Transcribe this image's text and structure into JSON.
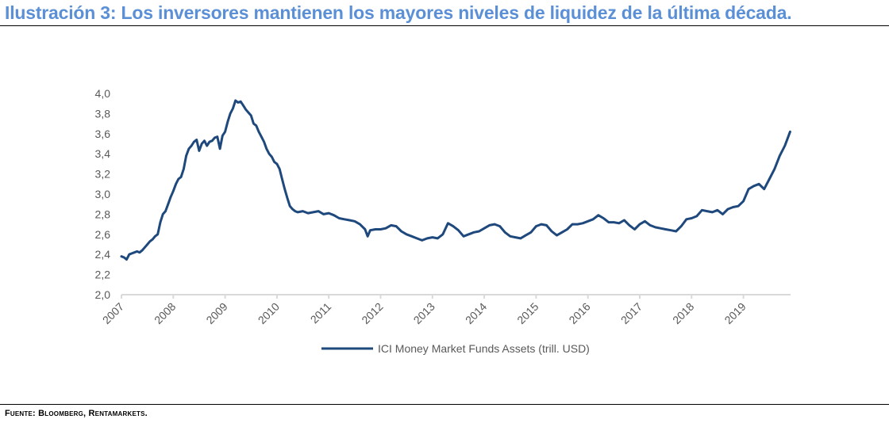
{
  "header": {
    "title": "Ilustración 3: Los inversores mantienen los mayores niveles de liquidez de la última década."
  },
  "footer": {
    "source": "Fuente: Bloomberg, Rentamarkets."
  },
  "colors": {
    "title": "#5b8fd6",
    "series": "#1f497d",
    "axis": "#d9d9d9",
    "tick_label": "#595959"
  },
  "chart_data": {
    "type": "line",
    "title": "",
    "xlabel": "",
    "ylabel": "",
    "xlim": [
      2007.0,
      2019.95
    ],
    "ylim": [
      2.0,
      4.0
    ],
    "yticks": [
      "2,0",
      "2,2",
      "2,4",
      "2,6",
      "2,8",
      "3,0",
      "3,2",
      "3,4",
      "3,6",
      "3,8",
      "4,0"
    ],
    "ytick_values": [
      2.0,
      2.2,
      2.4,
      2.6,
      2.8,
      3.0,
      3.2,
      3.4,
      3.6,
      3.8,
      4.0
    ],
    "xticks": [
      "2007",
      "2008",
      "2009",
      "2010",
      "2011",
      "2012",
      "2013",
      "2014",
      "2015",
      "2016",
      "2017",
      "2018",
      "2019"
    ],
    "xtick_values": [
      2007,
      2008,
      2009,
      2010,
      2011,
      2012,
      2013,
      2014,
      2015,
      2016,
      2017,
      2018,
      2019
    ],
    "grid": false,
    "legend": {
      "position": "bottom-center",
      "entries": [
        "ICI Money Market Funds Assets (trill. USD)"
      ]
    },
    "series": [
      {
        "name": "ICI Money Market Funds Assets (trill. USD)",
        "x": [
          2007.0,
          2007.05,
          2007.1,
          2007.15,
          2007.2,
          2007.25,
          2007.3,
          2007.35,
          2007.4,
          2007.45,
          2007.5,
          2007.55,
          2007.6,
          2007.65,
          2007.7,
          2007.75,
          2007.8,
          2007.85,
          2007.9,
          2007.95,
          2008.0,
          2008.05,
          2008.1,
          2008.15,
          2008.2,
          2008.25,
          2008.3,
          2008.35,
          2008.4,
          2008.45,
          2008.5,
          2008.55,
          2008.6,
          2008.65,
          2008.7,
          2008.75,
          2008.8,
          2008.85,
          2008.9,
          2008.95,
          2009.0,
          2009.05,
          2009.1,
          2009.15,
          2009.2,
          2009.25,
          2009.3,
          2009.35,
          2009.4,
          2009.45,
          2009.5,
          2009.55,
          2009.6,
          2009.65,
          2009.7,
          2009.75,
          2009.8,
          2009.85,
          2009.9,
          2009.95,
          2010.0,
          2010.05,
          2010.1,
          2010.15,
          2010.2,
          2010.25,
          2010.3,
          2010.35,
          2010.4,
          2010.5,
          2010.6,
          2010.7,
          2010.8,
          2010.9,
          2011.0,
          2011.1,
          2011.2,
          2011.3,
          2011.4,
          2011.5,
          2011.6,
          2011.7,
          2011.75,
          2011.8,
          2011.9,
          2012.0,
          2012.1,
          2012.2,
          2012.3,
          2012.4,
          2012.5,
          2012.6,
          2012.7,
          2012.8,
          2012.9,
          2013.0,
          2013.1,
          2013.2,
          2013.3,
          2013.4,
          2013.5,
          2013.6,
          2013.7,
          2013.8,
          2013.9,
          2014.0,
          2014.1,
          2014.2,
          2014.3,
          2014.4,
          2014.5,
          2014.6,
          2014.7,
          2014.8,
          2014.9,
          2015.0,
          2015.1,
          2015.2,
          2015.3,
          2015.4,
          2015.5,
          2015.6,
          2015.7,
          2015.8,
          2015.9,
          2016.0,
          2016.1,
          2016.2,
          2016.3,
          2016.4,
          2016.5,
          2016.6,
          2016.7,
          2016.8,
          2016.9,
          2017.0,
          2017.1,
          2017.2,
          2017.3,
          2017.4,
          2017.5,
          2017.6,
          2017.7,
          2017.8,
          2017.9,
          2018.0,
          2018.1,
          2018.2,
          2018.3,
          2018.4,
          2018.5,
          2018.6,
          2018.7,
          2018.8,
          2018.9,
          2019.0,
          2019.1,
          2019.2,
          2019.3,
          2019.4,
          2019.5,
          2019.6,
          2019.7,
          2019.8,
          2019.85,
          2019.9
        ],
        "y": [
          2.38,
          2.37,
          2.35,
          2.4,
          2.41,
          2.42,
          2.43,
          2.42,
          2.44,
          2.47,
          2.5,
          2.53,
          2.55,
          2.58,
          2.6,
          2.72,
          2.8,
          2.83,
          2.9,
          2.97,
          3.03,
          3.1,
          3.15,
          3.17,
          3.25,
          3.38,
          3.45,
          3.48,
          3.52,
          3.54,
          3.43,
          3.5,
          3.53,
          3.48,
          3.52,
          3.53,
          3.56,
          3.57,
          3.45,
          3.58,
          3.62,
          3.72,
          3.8,
          3.85,
          3.93,
          3.91,
          3.92,
          3.88,
          3.84,
          3.81,
          3.78,
          3.7,
          3.68,
          3.62,
          3.57,
          3.52,
          3.45,
          3.4,
          3.37,
          3.32,
          3.3,
          3.25,
          3.15,
          3.05,
          2.96,
          2.88,
          2.85,
          2.83,
          2.82,
          2.83,
          2.81,
          2.82,
          2.83,
          2.8,
          2.81,
          2.79,
          2.76,
          2.75,
          2.74,
          2.73,
          2.7,
          2.65,
          2.58,
          2.64,
          2.65,
          2.65,
          2.66,
          2.69,
          2.68,
          2.63,
          2.6,
          2.58,
          2.56,
          2.54,
          2.56,
          2.57,
          2.56,
          2.6,
          2.71,
          2.68,
          2.64,
          2.58,
          2.6,
          2.62,
          2.63,
          2.66,
          2.69,
          2.7,
          2.68,
          2.62,
          2.58,
          2.57,
          2.56,
          2.59,
          2.62,
          2.68,
          2.7,
          2.69,
          2.63,
          2.59,
          2.62,
          2.65,
          2.7,
          2.7,
          2.71,
          2.73,
          2.75,
          2.79,
          2.76,
          2.72,
          2.72,
          2.71,
          2.74,
          2.69,
          2.65,
          2.7,
          2.73,
          2.69,
          2.67,
          2.66,
          2.65,
          2.64,
          2.63,
          2.68,
          2.75,
          2.76,
          2.78,
          2.84,
          2.83,
          2.82,
          2.84,
          2.8,
          2.85,
          2.87,
          2.88,
          2.93,
          3.05,
          3.08,
          3.1,
          3.05,
          3.15,
          3.25,
          3.38,
          3.48,
          3.55,
          3.62
        ]
      }
    ]
  }
}
